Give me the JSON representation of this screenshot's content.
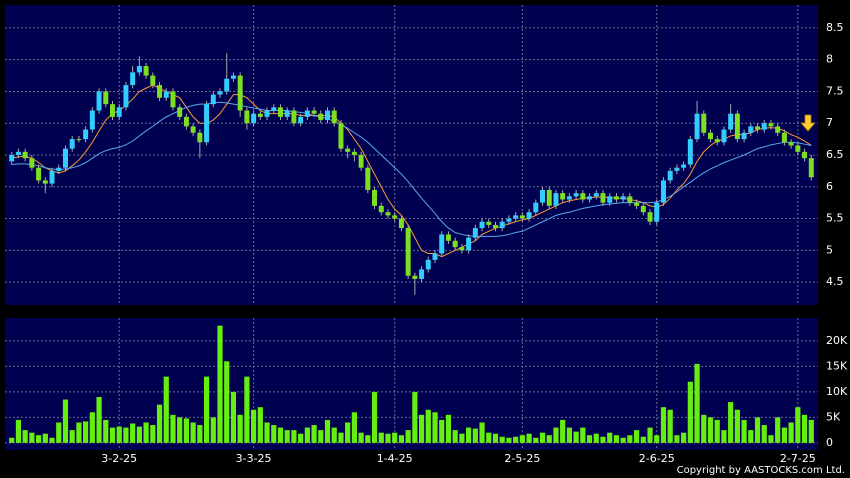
{
  "chart_data": [
    {
      "type": "candlestick",
      "up_color": "#33ccff",
      "down_color": "#7ce020",
      "open": [
        6.4,
        6.5,
        6.55,
        6.45,
        6.3,
        6.1,
        6.05,
        6.25,
        6.3,
        6.6,
        6.75,
        6.75,
        6.9,
        7.2,
        7.5,
        7.3,
        7.1,
        7.25,
        7.6,
        7.8,
        7.9,
        7.75,
        7.6,
        7.4,
        7.5,
        7.25,
        7.1,
        6.95,
        6.85,
        6.7,
        7.3,
        7.45,
        7.5,
        7.7,
        7.75,
        7.2,
        7.0,
        7.15,
        7.1,
        7.2,
        7.25,
        7.1,
        7.2,
        7.0,
        7.1,
        7.2,
        7.15,
        7.05,
        7.2,
        7.0,
        6.6,
        6.55,
        6.5,
        6.3,
        5.95,
        5.7,
        5.6,
        5.55,
        5.5,
        5.35,
        4.6,
        4.55,
        4.7,
        4.85,
        4.95,
        5.25,
        5.15,
        5.05,
        5.0,
        5.2,
        5.35,
        5.45,
        5.4,
        5.35,
        5.45,
        5.5,
        5.55,
        5.5,
        5.6,
        5.75,
        5.95,
        5.7,
        5.9,
        5.8,
        5.85,
        5.9,
        5.8,
        5.85,
        5.9,
        5.75,
        5.85,
        5.8,
        5.85,
        5.75,
        5.7,
        5.6,
        5.45,
        5.75,
        6.1,
        6.25,
        6.3,
        6.35,
        6.75,
        7.15,
        6.85,
        6.75,
        6.7,
        6.9,
        7.15,
        6.75,
        6.85,
        6.95,
        6.9,
        7.0,
        6.95,
        6.85,
        6.7,
        6.65,
        6.55,
        6.45
      ],
      "high": [
        6.55,
        6.6,
        6.6,
        6.5,
        6.35,
        6.15,
        6.3,
        6.35,
        6.65,
        6.8,
        6.8,
        6.95,
        7.25,
        7.55,
        7.55,
        7.35,
        7.3,
        7.65,
        7.9,
        8.05,
        7.95,
        7.8,
        7.65,
        7.55,
        7.55,
        7.3,
        7.15,
        7.0,
        6.9,
        7.35,
        7.5,
        7.55,
        8.1,
        7.8,
        7.8,
        7.25,
        7.2,
        7.2,
        7.25,
        7.3,
        7.3,
        7.25,
        7.25,
        7.15,
        7.25,
        7.25,
        7.2,
        7.25,
        7.25,
        7.05,
        6.65,
        6.6,
        6.55,
        6.35,
        6.0,
        5.75,
        5.65,
        5.6,
        5.55,
        5.4,
        4.65,
        4.75,
        4.9,
        5.0,
        5.3,
        5.3,
        5.2,
        5.1,
        5.25,
        5.4,
        5.5,
        5.5,
        5.45,
        5.5,
        5.55,
        5.6,
        5.6,
        5.65,
        5.8,
        6.0,
        6.0,
        5.95,
        5.95,
        5.9,
        5.95,
        5.95,
        5.9,
        5.95,
        5.95,
        5.9,
        5.9,
        5.9,
        5.9,
        5.8,
        5.75,
        5.65,
        5.8,
        6.15,
        6.3,
        6.35,
        6.4,
        6.8,
        7.35,
        7.2,
        6.9,
        6.8,
        6.95,
        7.3,
        7.2,
        6.9,
        7.0,
        7.0,
        7.05,
        7.05,
        7.0,
        6.9,
        6.75,
        6.7,
        6.6,
        6.5
      ],
      "low": [
        6.35,
        6.45,
        6.4,
        6.25,
        6.05,
        5.9,
        6.0,
        6.2,
        6.25,
        6.55,
        6.7,
        6.7,
        6.85,
        7.15,
        7.25,
        7.05,
        7.05,
        7.2,
        7.55,
        7.75,
        7.7,
        7.55,
        7.35,
        7.35,
        7.2,
        7.05,
        6.9,
        6.8,
        6.45,
        6.65,
        7.25,
        7.4,
        7.45,
        7.65,
        7.1,
        6.9,
        6.95,
        7.05,
        7.05,
        7.15,
        7.05,
        7.05,
        6.95,
        6.95,
        7.05,
        7.1,
        7.0,
        7.0,
        6.95,
        6.55,
        6.45,
        6.4,
        6.25,
        5.9,
        5.65,
        5.55,
        5.5,
        5.45,
        5.3,
        4.55,
        4.3,
        4.5,
        4.65,
        4.8,
        4.9,
        5.1,
        5.0,
        4.95,
        4.95,
        5.15,
        5.3,
        5.35,
        5.3,
        5.3,
        5.4,
        5.45,
        5.45,
        5.45,
        5.55,
        5.7,
        5.65,
        5.65,
        5.75,
        5.75,
        5.8,
        5.75,
        5.75,
        5.8,
        5.7,
        5.7,
        5.75,
        5.75,
        5.7,
        5.65,
        5.55,
        5.4,
        5.4,
        5.7,
        6.05,
        6.2,
        6.25,
        6.3,
        6.7,
        6.8,
        6.7,
        6.65,
        6.65,
        6.85,
        6.7,
        6.7,
        6.8,
        6.85,
        6.85,
        6.9,
        6.8,
        6.65,
        6.6,
        6.5,
        6.4,
        6.1
      ],
      "close": [
        6.5,
        6.55,
        6.45,
        6.3,
        6.1,
        6.05,
        6.25,
        6.3,
        6.6,
        6.75,
        6.75,
        6.9,
        7.2,
        7.5,
        7.3,
        7.1,
        7.25,
        7.6,
        7.8,
        7.9,
        7.75,
        7.6,
        7.4,
        7.5,
        7.25,
        7.1,
        6.95,
        6.85,
        6.7,
        7.3,
        7.45,
        7.5,
        7.7,
        7.75,
        7.2,
        7.0,
        7.15,
        7.1,
        7.2,
        7.25,
        7.1,
        7.2,
        7.0,
        7.1,
        7.2,
        7.15,
        7.05,
        7.2,
        7.0,
        6.6,
        6.55,
        6.5,
        6.3,
        5.95,
        5.7,
        5.6,
        5.55,
        5.5,
        5.35,
        4.6,
        4.55,
        4.7,
        4.85,
        4.95,
        5.25,
        5.15,
        5.05,
        5.0,
        5.2,
        5.35,
        5.45,
        5.4,
        5.35,
        5.45,
        5.5,
        5.55,
        5.5,
        5.6,
        5.75,
        5.95,
        5.7,
        5.9,
        5.8,
        5.85,
        5.9,
        5.8,
        5.85,
        5.9,
        5.75,
        5.85,
        5.8,
        5.85,
        5.75,
        5.7,
        5.6,
        5.45,
        5.75,
        6.1,
        6.25,
        6.3,
        6.35,
        6.75,
        7.15,
        6.85,
        6.75,
        6.7,
        6.9,
        7.15,
        6.75,
        6.85,
        6.95,
        6.9,
        7.0,
        6.95,
        6.85,
        6.7,
        6.65,
        6.55,
        6.45,
        6.15
      ],
      "series": [
        {
          "color": "#ff9933",
          "values": [
            6.45,
            6.47,
            6.48,
            6.45,
            6.38,
            6.3,
            6.25,
            6.22,
            6.25,
            6.33,
            6.42,
            6.55,
            6.7,
            6.88,
            7.05,
            7.15,
            7.2,
            7.28,
            7.38,
            7.5,
            7.55,
            7.6,
            7.55,
            7.5,
            7.45,
            7.4,
            7.25,
            7.1,
            7.0,
            7.0,
            7.05,
            7.15,
            7.3,
            7.45,
            7.45,
            7.4,
            7.3,
            7.2,
            7.15,
            7.15,
            7.15,
            7.15,
            7.15,
            7.12,
            7.12,
            7.12,
            7.12,
            7.12,
            7.1,
            7.0,
            6.9,
            6.75,
            6.6,
            6.4,
            6.2,
            6.0,
            5.8,
            5.65,
            5.55,
            5.4,
            5.2,
            5.0,
            4.95,
            4.95,
            4.9,
            4.95,
            5.0,
            5.05,
            5.1,
            5.15,
            5.25,
            5.3,
            5.35,
            5.38,
            5.42,
            5.45,
            5.48,
            5.5,
            5.55,
            5.6,
            5.65,
            5.7,
            5.75,
            5.78,
            5.8,
            5.82,
            5.83,
            5.84,
            5.84,
            5.83,
            5.82,
            5.82,
            5.8,
            5.78,
            5.75,
            5.7,
            5.68,
            5.72,
            5.82,
            5.95,
            6.05,
            6.2,
            6.4,
            6.55,
            6.65,
            6.72,
            6.75,
            6.8,
            6.82,
            6.82,
            6.85,
            6.9,
            6.92,
            6.93,
            6.92,
            6.88,
            6.82,
            6.78,
            6.72,
            6.65
          ]
        },
        {
          "color": "#55aaee",
          "values": [
            6.35,
            6.36,
            6.36,
            6.35,
            6.33,
            6.3,
            6.28,
            6.27,
            6.28,
            6.3,
            6.33,
            6.38,
            6.45,
            6.52,
            6.57,
            6.6,
            6.62,
            6.66,
            6.72,
            6.8,
            6.88,
            6.95,
            7.03,
            7.1,
            7.15,
            7.2,
            7.25,
            7.28,
            7.3,
            7.3,
            7.32,
            7.33,
            7.32,
            7.3,
            7.28,
            7.26,
            7.24,
            7.22,
            7.2,
            7.2,
            7.2,
            7.2,
            7.18,
            7.17,
            7.15,
            7.12,
            7.1,
            7.07,
            7.03,
            6.98,
            6.92,
            6.85,
            6.78,
            6.7,
            6.6,
            6.5,
            6.4,
            6.3,
            6.2,
            6.08,
            5.95,
            5.82,
            5.7,
            5.58,
            5.45,
            5.35,
            5.28,
            5.25,
            5.23,
            5.22,
            5.22,
            5.22,
            5.22,
            5.23,
            5.25,
            5.28,
            5.3,
            5.35,
            5.4,
            5.45,
            5.5,
            5.55,
            5.58,
            5.6,
            5.63,
            5.66,
            5.68,
            5.7,
            5.72,
            5.73,
            5.74,
            5.75,
            5.75,
            5.75,
            5.75,
            5.75,
            5.76,
            5.8,
            5.85,
            5.92,
            6.0,
            6.07,
            6.15,
            6.22,
            6.28,
            6.33,
            6.38,
            6.42,
            6.46,
            6.5,
            6.55,
            6.6,
            6.63,
            6.66,
            6.68,
            6.7,
            6.7,
            6.69,
            6.67,
            6.65
          ]
        }
      ],
      "xlim": [
        -1,
        120
      ],
      "ylim": [
        4.14,
        8.86
      ],
      "yticks": [
        4.5,
        5,
        5.5,
        6,
        6.5,
        7,
        7.5,
        8,
        8.5
      ],
      "grid": true
    },
    {
      "type": "bar",
      "color": "#66ee11",
      "values": [
        1000,
        4500,
        2500,
        2000,
        1500,
        1800,
        1000,
        4000,
        8500,
        2500,
        4000,
        4200,
        6000,
        9000,
        4500,
        3000,
        3200,
        3000,
        3800,
        3200,
        4000,
        3500,
        7500,
        13000,
        5500,
        5000,
        4800,
        4000,
        3500,
        13000,
        5000,
        23000,
        16000,
        10000,
        5500,
        13000,
        6500,
        7000,
        4000,
        3500,
        3000,
        2500,
        2500,
        1800,
        3000,
        3500,
        2500,
        4500,
        3000,
        2000,
        4000,
        6000,
        2000,
        1500,
        10000,
        2000,
        1800,
        2000,
        1500,
        2500,
        10000,
        5500,
        6500,
        6000,
        4500,
        5500,
        2500,
        1800,
        3000,
        2800,
        4000,
        2000,
        1800,
        1200,
        1000,
        1200,
        1500,
        1800,
        1000,
        2000,
        1500,
        3000,
        4500,
        3000,
        2200,
        3000,
        1500,
        1800,
        1200,
        2000,
        1500,
        1000,
        1500,
        2500,
        1200,
        3000,
        1500,
        7000,
        6500,
        1500,
        2000,
        12000,
        15500,
        5500,
        5000,
        4500,
        2500,
        8000,
        6500,
        4500,
        2500,
        5000,
        3500,
        1500,
        5000,
        3000,
        4000,
        7000,
        5500,
        4500
      ],
      "xlim": [
        -1,
        120
      ],
      "xticks": [
        {
          "value": 16,
          "label": "3-2-25"
        },
        {
          "value": 36,
          "label": "3-3-25"
        },
        {
          "value": 57,
          "label": "1-4-25"
        },
        {
          "value": 76,
          "label": "2-5-25"
        },
        {
          "value": 96,
          "label": "2-6-25"
        },
        {
          "value": 117,
          "label": "2-7-25"
        }
      ],
      "ylim": [
        -1400,
        24500
      ],
      "yticks": [
        0,
        {
          "value": 5000,
          "label": "5K"
        },
        {
          "value": 10000,
          "label": "10K"
        },
        {
          "value": 15000,
          "label": "15K"
        },
        {
          "value": 20000,
          "label": "20K"
        }
      ],
      "grid": true
    }
  ],
  "copyright": "Copyright by AASTOCKS.com Ltd."
}
